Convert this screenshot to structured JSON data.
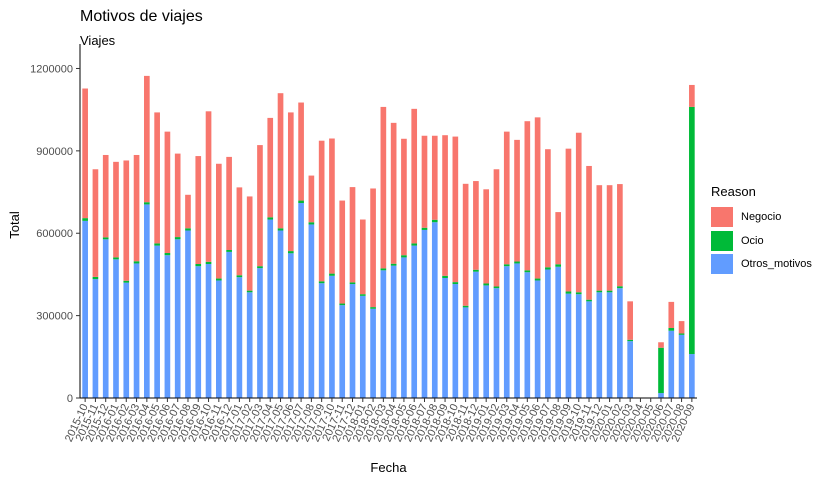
{
  "chart_data": {
    "type": "bar",
    "stacked": true,
    "title": "Motivos de viajes",
    "subtitle": "Viajes",
    "xlabel": "Fecha",
    "ylabel": "Total",
    "ylim": [
      0,
      1260000
    ],
    "yticks": [
      0,
      300000,
      600000,
      900000,
      1200000
    ],
    "ytick_labels": [
      "0",
      "300000",
      "600000",
      "900000",
      "1200000"
    ],
    "grid": false,
    "legend": {
      "title": "Reason",
      "position": "right",
      "items": [
        {
          "name": "Negocio",
          "color": "#F8766D"
        },
        {
          "name": "Ocio",
          "color": "#00BA38"
        },
        {
          "name": "Otros_motivos",
          "color": "#619CFF"
        }
      ]
    },
    "categories": [
      "2015-10",
      "2015-11",
      "2015-12",
      "2016-01",
      "2016-02",
      "2016-03",
      "2016-04",
      "2016-05",
      "2016-06",
      "2016-07",
      "2016-08",
      "2016-09",
      "2016-10",
      "2016-11",
      "2016-12",
      "2017-01",
      "2017-02",
      "2017-03",
      "2017-04",
      "2017-05",
      "2017-06",
      "2017-07",
      "2017-08",
      "2017-09",
      "2017-10",
      "2017-11",
      "2017-12",
      "2018-01",
      "2018-02",
      "2018-03",
      "2018-04",
      "2018-05",
      "2018-06",
      "2018-07",
      "2018-08",
      "2018-09",
      "2018-10",
      "2018-11",
      "2018-12",
      "2019-01",
      "2019-02",
      "2019-03",
      "2019-04",
      "2019-05",
      "2019-06",
      "2019-07",
      "2019-08",
      "2019-09",
      "2019-10",
      "2019-11",
      "2019-12",
      "2020-01",
      "2020-02",
      "2020-03",
      "2020-04",
      "2020-05",
      "2020-06",
      "2020-07",
      "2020-08",
      "2020-09"
    ],
    "series": [
      {
        "name": "Otros_motivos",
        "color": "#619CFF",
        "values": [
          645000,
          433000,
          578000,
          505000,
          420000,
          490000,
          705000,
          555000,
          520000,
          578000,
          610000,
          480000,
          488000,
          428000,
          532000,
          440000,
          385000,
          473000,
          650000,
          610000,
          527000,
          710000,
          632000,
          418000,
          445000,
          338000,
          415000,
          372000,
          325000,
          465000,
          482000,
          512000,
          555000,
          612000,
          640000,
          437000,
          415000,
          330000,
          460000,
          410000,
          400000,
          480000,
          490000,
          458000,
          428000,
          468000,
          478000,
          380000,
          378000,
          352000,
          385000,
          385000,
          400000,
          207000,
          0,
          0,
          18000,
          245000,
          230000,
          160000
        ]
      },
      {
        "name": "Ocio",
        "color": "#00BA38",
        "values": [
          10000,
          8000,
          7000,
          7000,
          7000,
          8000,
          8000,
          8000,
          8000,
          8000,
          8000,
          8000,
          8000,
          7000,
          7000,
          7000,
          6000,
          7000,
          8000,
          8000,
          8000,
          9000,
          8000,
          7000,
          8000,
          6000,
          6000,
          6000,
          6000,
          7000,
          7000,
          8000,
          8000,
          8000,
          9000,
          8000,
          7000,
          6000,
          7000,
          7000,
          6000,
          7000,
          7000,
          7000,
          7000,
          8000,
          9000,
          8000,
          7000,
          6000,
          6000,
          6000,
          7000,
          5000,
          0,
          0,
          165000,
          10000,
          5000,
          900000
        ]
      },
      {
        "name": "Negocio",
        "color": "#F8766D",
        "values": [
          472000,
          392000,
          300000,
          348000,
          438000,
          387000,
          460000,
          477000,
          442000,
          304000,
          122000,
          393000,
          548000,
          418000,
          339000,
          320000,
          343000,
          441000,
          362000,
          492000,
          505000,
          357000,
          170000,
          512000,
          492000,
          375000,
          347000,
          272000,
          432000,
          588000,
          513000,
          424000,
          490000,
          335000,
          306000,
          512000,
          530000,
          444000,
          323000,
          343000,
          427000,
          483000,
          443000,
          543000,
          587000,
          430000,
          190000,
          520000,
          581000,
          487000,
          384000,
          384000,
          372000,
          140000,
          0,
          0,
          20000,
          95000,
          45000,
          80000
        ]
      }
    ]
  }
}
